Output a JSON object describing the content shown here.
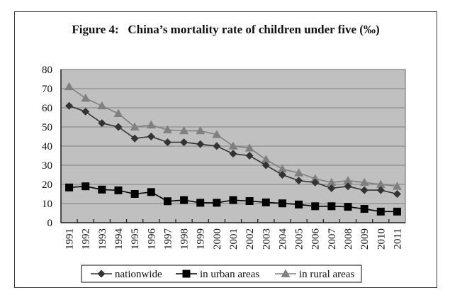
{
  "chart_data": {
    "type": "line",
    "title": "Figure 4:   China’s mortality rate of children under five (‰)",
    "xlabel": "",
    "ylabel": "",
    "ylim": [
      0,
      80
    ],
    "yticks": [
      0,
      10,
      20,
      30,
      40,
      50,
      60,
      70,
      80
    ],
    "grid": true,
    "legend_position": "bottom",
    "categories": [
      "1991",
      "1992",
      "1993",
      "1994",
      "1995",
      "1996",
      "1997",
      "1998",
      "1999",
      "2000",
      "2001",
      "2002",
      "2003",
      "2004",
      "2005",
      "2006",
      "2007",
      "2008",
      "2009",
      "2010",
      "2011"
    ],
    "series": [
      {
        "name": "nationwide",
        "marker": "diamond",
        "color": "#333333",
        "values": [
          61.0,
          58.0,
          52.0,
          50.0,
          44.0,
          45.0,
          42.0,
          42.0,
          41.0,
          40.0,
          36.0,
          35.0,
          30.0,
          25.0,
          22.0,
          21.0,
          18.0,
          19.0,
          17.0,
          17.0,
          15.0
        ]
      },
      {
        "name": "in urban areas",
        "marker": "square",
        "color": "#000000",
        "values": [
          18.4,
          19.0,
          17.3,
          16.9,
          15.0,
          16.0,
          11.2,
          11.8,
          10.4,
          10.4,
          11.8,
          11.3,
          10.6,
          10.1,
          9.5,
          8.6,
          8.6,
          8.3,
          7.2,
          5.8,
          5.8
        ]
      },
      {
        "name": "in rural areas",
        "marker": "triangle",
        "color": "#808080",
        "values": [
          71.0,
          65.0,
          61.0,
          57.0,
          50.0,
          51.0,
          48.5,
          48.0,
          48.0,
          46.0,
          40.0,
          39.0,
          33.0,
          28.0,
          26.0,
          23.0,
          21.0,
          22.0,
          21.0,
          20.0,
          19.0
        ]
      }
    ]
  },
  "colors": {
    "plot_background": "#c0c0c0",
    "gridline": "#8c8c8c",
    "axis": "#222222"
  }
}
